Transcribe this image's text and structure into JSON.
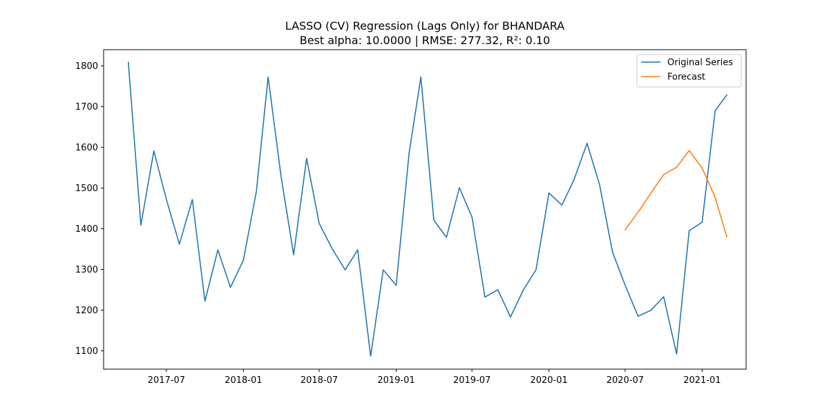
{
  "chart_data": {
    "type": "line",
    "title": "LASSO (CV) Regression (Lags Only) for BHANDARA",
    "subtitle": "Best alpha: 10.0000 | RMSE: 277.32, R²: 0.10",
    "xlabel": "",
    "ylabel": "",
    "x_range": [
      "2017-02-01",
      "2021-04-16"
    ],
    "ylim": [
      1055,
      1840
    ],
    "x_ticks": [
      "2017-07",
      "2018-01",
      "2018-07",
      "2019-01",
      "2019-07",
      "2020-01",
      "2020-07",
      "2021-01"
    ],
    "y_ticks": [
      1100,
      1200,
      1300,
      1400,
      1500,
      1600,
      1700,
      1800
    ],
    "grid": false,
    "legend_position": "top-right",
    "series": [
      {
        "name": "Original Series",
        "color": "#1f77b4",
        "x": [
          "2017-04",
          "2017-05",
          "2017-06",
          "2017-07",
          "2017-08",
          "2017-09",
          "2017-10",
          "2017-11",
          "2017-12",
          "2018-01",
          "2018-02",
          "2018-03",
          "2018-04",
          "2018-05",
          "2018-06",
          "2018-07",
          "2018-08",
          "2018-09",
          "2018-10",
          "2018-11",
          "2018-12",
          "2019-01",
          "2019-02",
          "2019-03",
          "2019-04",
          "2019-05",
          "2019-06",
          "2019-07",
          "2019-08",
          "2019-09",
          "2019-10",
          "2019-11",
          "2019-12",
          "2020-01",
          "2020-02",
          "2020-03",
          "2020-04",
          "2020-05",
          "2020-06",
          "2020-07",
          "2020-08",
          "2020-09",
          "2020-10",
          "2020-11",
          "2020-12",
          "2021-01",
          "2021-02",
          "2021-03"
        ],
        "values": [
          1809,
          1409,
          1591,
          1472,
          1362,
          1472,
          1222,
          1348,
          1256,
          1323,
          1492,
          1773,
          1528,
          1336,
          1573,
          1413,
          1351,
          1299,
          1348,
          1087,
          1299,
          1261,
          1587,
          1773,
          1421,
          1379,
          1501,
          1429,
          1232,
          1250,
          1183,
          1250,
          1299,
          1488,
          1458,
          1521,
          1610,
          1508,
          1342,
          1261,
          1185,
          1200,
          1233,
          1092,
          1395,
          1416,
          1690,
          1729
        ]
      },
      {
        "name": "Forecast",
        "color": "#ff7f0e",
        "x": [
          "2020-07",
          "2020-08",
          "2020-09",
          "2020-10",
          "2020-11",
          "2020-12",
          "2021-01",
          "2021-02",
          "2021-03"
        ],
        "values": [
          1397,
          1441,
          1488,
          1533,
          1551,
          1592,
          1549,
          1477,
          1380
        ]
      }
    ]
  }
}
